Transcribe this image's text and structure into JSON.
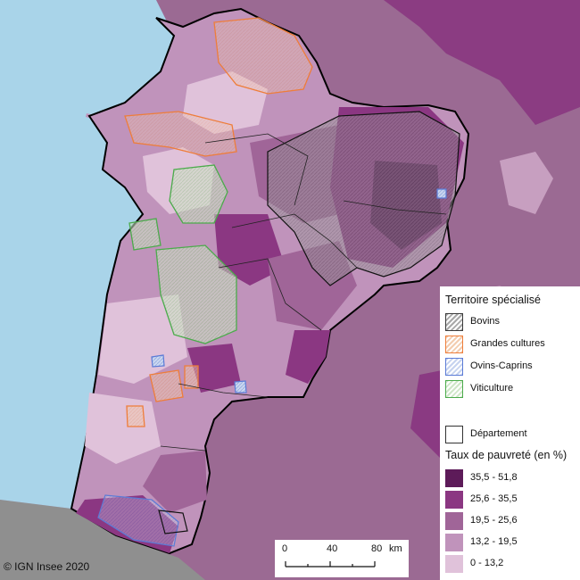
{
  "legend": {
    "territory_title": "Territoire spécialisé",
    "territories": [
      {
        "label": "Bovins",
        "color": "#3a3a3a",
        "fill": "#a8a8a8"
      },
      {
        "label": "Grandes cultures",
        "color": "#ee7d3a",
        "fill": "#f3cdb0"
      },
      {
        "label": "Ovins-Caprins",
        "color": "#5b7bd6",
        "fill": "#c6d3ef"
      },
      {
        "label": "Viticulture",
        "color": "#4bab4b",
        "fill": "#cfe6c8"
      }
    ],
    "departement_label": "Département",
    "rate_title": "Taux de pauvreté (en %)",
    "classes": [
      {
        "label": "35,5 - 51,8",
        "color": "#5d1b59"
      },
      {
        "label": "25,6 - 35,5",
        "color": "#8b3782"
      },
      {
        "label": "19,5 - 25,6",
        "color": "#a06598"
      },
      {
        "label": "13,2 - 19,5",
        "color": "#c093bb"
      },
      {
        "label": "0 - 13,2",
        "color": "#e0c2da"
      }
    ]
  },
  "scale": {
    "ticks": [
      "0",
      "40",
      "80"
    ],
    "unit": "km"
  },
  "copyright": "© IGN Insee 2020",
  "colors": {
    "sea": "#a9d4e9",
    "outside": "#9b6a93",
    "spain": "#8f8f8f",
    "region_border": "#000000"
  }
}
